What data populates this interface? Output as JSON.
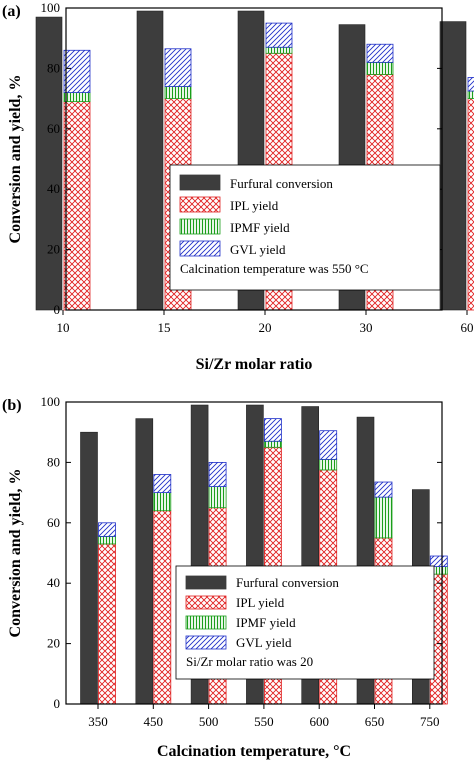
{
  "chart_data": [
    {
      "type": "bar",
      "panel": "(a)",
      "categories": [
        "10",
        "15",
        "20",
        "30",
        "60"
      ],
      "xlabel": "Si/Zr molar ratio",
      "ylabel": "Conversion and yield, %",
      "ylim": [
        0,
        100
      ],
      "yticks": [
        0,
        20,
        40,
        60,
        80,
        100
      ],
      "series": [
        {
          "name": "Furfural conversion",
          "values": [
            97,
            99,
            99,
            94.5,
            95.5
          ],
          "color": "#3d3d3d",
          "stack": "conv"
        },
        {
          "name": "IPL yield",
          "values": [
            69,
            70,
            85,
            78,
            70
          ],
          "color": "#e02020",
          "stack": "yield"
        },
        {
          "name": "IPMF yield",
          "values": [
            3,
            4,
            2,
            4,
            2.5
          ],
          "color": "#1b9e1b",
          "stack": "yield"
        },
        {
          "name": "GVL yield",
          "values": [
            14,
            12.5,
            8,
            6,
            4.5
          ],
          "color": "#2030c8",
          "stack": "yield"
        }
      ],
      "note": "Calcination temperature was 550 °C",
      "legend_position": "center-right"
    },
    {
      "type": "bar",
      "panel": "(b)",
      "categories": [
        "350",
        "450",
        "500",
        "550",
        "600",
        "650",
        "750"
      ],
      "xlabel": "Calcination temperature, °C",
      "ylabel": "Conversion and yield, %",
      "ylim": [
        0,
        100
      ],
      "yticks": [
        0,
        20,
        40,
        60,
        80,
        100
      ],
      "series": [
        {
          "name": "Furfural conversion",
          "values": [
            90,
            94.5,
            99,
            99,
            98.5,
            95,
            71
          ],
          "color": "#3d3d3d",
          "stack": "conv"
        },
        {
          "name": "IPL yield",
          "values": [
            53,
            64,
            65,
            85,
            77.5,
            55,
            43
          ],
          "color": "#e02020",
          "stack": "yield"
        },
        {
          "name": "IPMF yield",
          "values": [
            2.5,
            6,
            7,
            2,
            3.5,
            13.5,
            2.5
          ],
          "color": "#1b9e1b",
          "stack": "yield"
        },
        {
          "name": "GVL yield",
          "values": [
            4.5,
            6,
            8,
            7.5,
            9.5,
            5,
            3.5
          ],
          "color": "#2030c8",
          "stack": "yield"
        }
      ],
      "note": "Si/Zr molar ratio was 20",
      "legend_position": "center-right"
    }
  ]
}
